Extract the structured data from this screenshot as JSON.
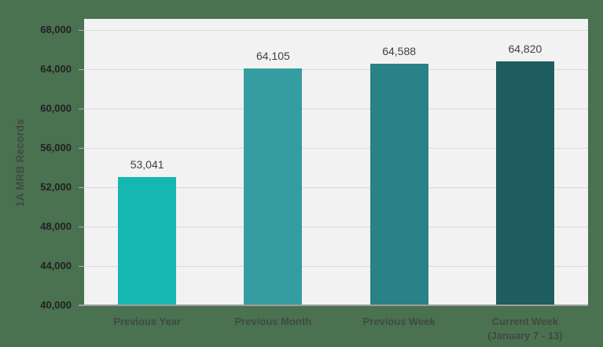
{
  "chart_data": {
    "type": "bar",
    "title": "",
    "xlabel": "",
    "ylabel": "1A MRB Records",
    "categories": [
      "Previous Year",
      "Previous Month",
      "Previous Week",
      "Current Week\n(January 7 - 13)"
    ],
    "values": [
      53041,
      64105,
      64588,
      64820
    ],
    "value_labels": [
      "53,041",
      "64,105",
      "64,588",
      "64,820"
    ],
    "bar_colors": [
      "#15b8b1",
      "#359da1",
      "#2a8186",
      "#1e5d60"
    ],
    "ylim": [
      40000,
      69100
    ],
    "yticks": [
      40000,
      44000,
      48000,
      52000,
      56000,
      60000,
      64000,
      68000
    ],
    "ytick_labels": [
      "40,000",
      "44,000",
      "48,000",
      "52,000",
      "56,000",
      "60,000",
      "64,000",
      "68,000"
    ],
    "grid": true,
    "legend_position": "none"
  },
  "colors": {
    "page_background": "#4a7150",
    "plot_background": "#f2f2f2",
    "gridline": "#d9d9d9",
    "axis_line": "#9e9e9e",
    "tick_mark": "#b0b0b0",
    "tick_label": "#222222",
    "data_label": "#404040",
    "category_label": "#404a43",
    "axis_title": "#404a43"
  }
}
